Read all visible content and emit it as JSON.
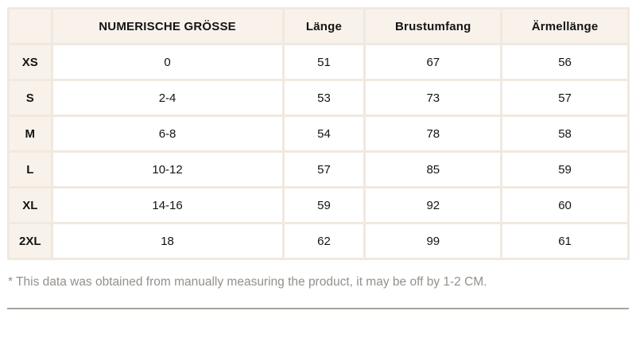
{
  "table": {
    "columns": [
      "",
      "NUMERISCHE GRÖSSE",
      "Länge",
      "Brustumfang",
      "Ärmellänge"
    ],
    "rows": [
      [
        "XS",
        "0",
        "51",
        "67",
        "56"
      ],
      [
        "S",
        "2-4",
        "53",
        "73",
        "57"
      ],
      [
        "M",
        "6-8",
        "54",
        "78",
        "58"
      ],
      [
        "L",
        "10-12",
        "57",
        "85",
        "59"
      ],
      [
        "XL",
        "14-16",
        "59",
        "92",
        "60"
      ],
      [
        "2XL",
        "18",
        "62",
        "99",
        "61"
      ]
    ]
  },
  "footnote": "* This data was obtained from manually measuring the product, it may be off by 1-2 CM.",
  "colors": {
    "cell_cream": "#f8f2eb",
    "cell_border": "#f0e9e0",
    "data_cell_bg": "#ffffff",
    "text": "#141414",
    "footnote_gray": "#95908a",
    "divider_gray": "#a9a49d",
    "page_bg": "#ffffff"
  }
}
